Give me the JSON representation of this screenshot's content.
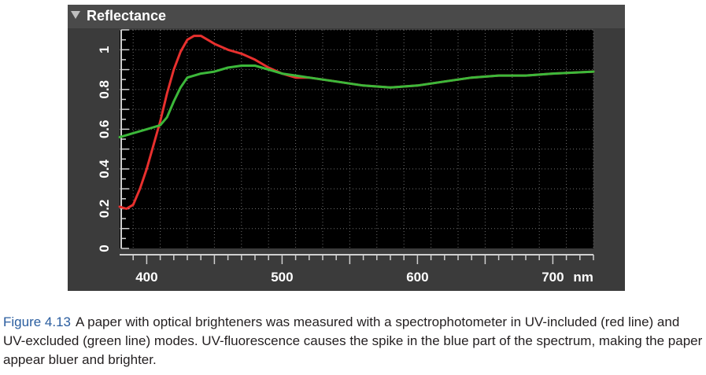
{
  "panel": {
    "title": "Reflectance"
  },
  "caption": {
    "label": "Figure 4.13",
    "text": "A paper with optical brighteners was measured with a spectrophotometer in UV-included (red line) and UV-excluded (green line) modes. UV-fluorescence causes the spike in the blue part of the spectrum, making the paper appear bluer and brighter."
  },
  "chart_data": {
    "type": "line",
    "title": "Reflectance",
    "xlabel": "",
    "ylabel": "",
    "x_unit": "nm",
    "xlim": [
      380,
      730
    ],
    "ylim": [
      0,
      1.1
    ],
    "x_ticks": [
      400,
      500,
      600,
      700
    ],
    "y_ticks": [
      0,
      0.2,
      0.4,
      0.6,
      0.8,
      1
    ],
    "grid": true,
    "colors": {
      "background": "#000000",
      "grid": "#6e6e6e",
      "axis": "#d0d0d0",
      "text": "#ffffff"
    },
    "series": [
      {
        "color": "#e8302e",
        "x": [
          380,
          385,
          390,
          395,
          400,
          405,
          410,
          415,
          420,
          425,
          430,
          435,
          440,
          445,
          450,
          460,
          470,
          480,
          490,
          500,
          510,
          520,
          540,
          560,
          580,
          600,
          620,
          640,
          660,
          680,
          700,
          730
        ],
        "y": [
          0.21,
          0.2,
          0.22,
          0.3,
          0.4,
          0.52,
          0.64,
          0.78,
          0.9,
          0.99,
          1.05,
          1.07,
          1.07,
          1.05,
          1.03,
          1.0,
          0.98,
          0.95,
          0.91,
          0.88,
          0.86,
          0.86,
          0.84,
          0.82,
          0.81,
          0.82,
          0.84,
          0.86,
          0.87,
          0.87,
          0.88,
          0.89
        ]
      },
      {
        "color": "#3cb83a",
        "x": [
          380,
          390,
          400,
          410,
          415,
          420,
          425,
          430,
          440,
          450,
          460,
          470,
          480,
          490,
          500,
          510,
          520,
          540,
          560,
          580,
          600,
          620,
          640,
          660,
          680,
          700,
          730
        ],
        "y": [
          0.56,
          0.58,
          0.6,
          0.62,
          0.66,
          0.74,
          0.81,
          0.86,
          0.88,
          0.89,
          0.91,
          0.92,
          0.92,
          0.9,
          0.88,
          0.87,
          0.86,
          0.84,
          0.82,
          0.81,
          0.82,
          0.84,
          0.86,
          0.87,
          0.87,
          0.88,
          0.89
        ]
      }
    ]
  }
}
